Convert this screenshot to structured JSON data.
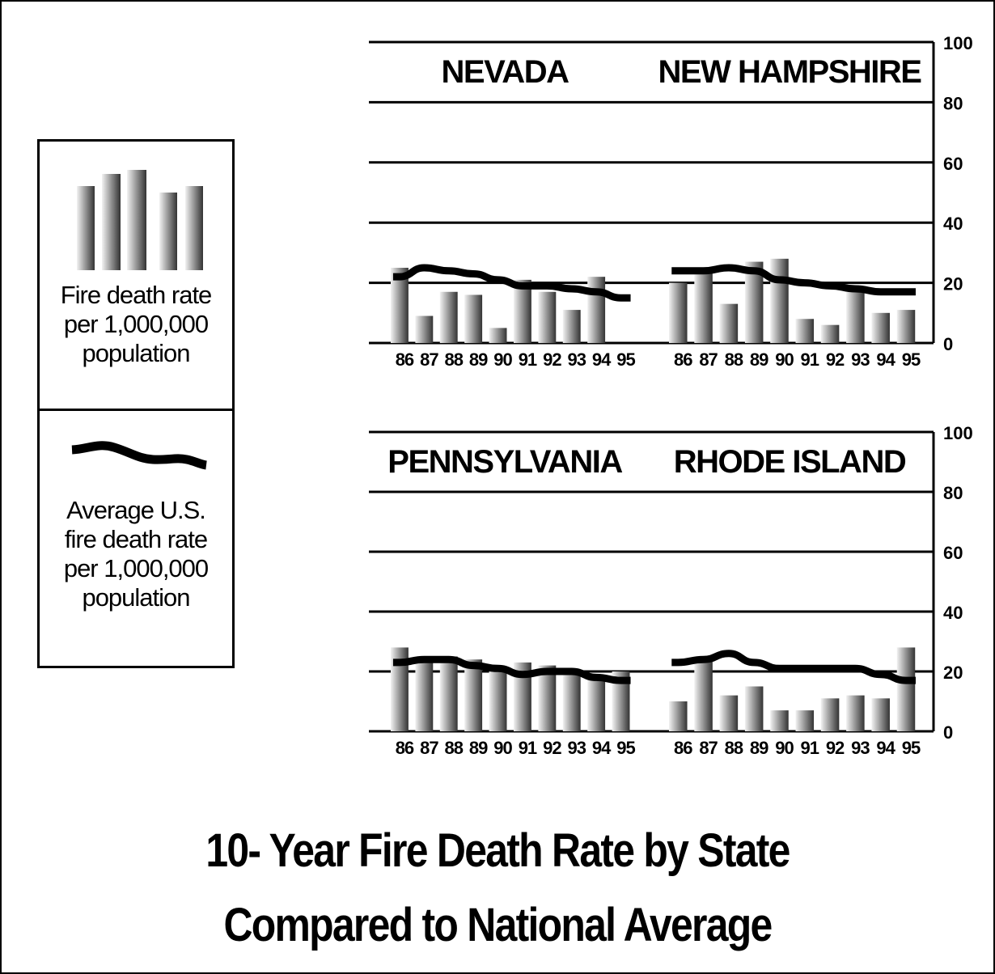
{
  "legend": {
    "bar_label": "Fire death rate\nper 1,000,000\npopulation",
    "line_label": "Average U.S.\nfire death rate\nper 1,000,000\npopulation"
  },
  "title": {
    "line1": "10- Year Fire Death Rate by State",
    "line2": "Compared to National Average"
  },
  "colors": {
    "bar_light": "#f2f2f2",
    "bar_dark": "#333333",
    "line": "#000000",
    "axis": "#000000"
  },
  "chart_data": [
    {
      "type": "bar",
      "title": "NEVADA",
      "categories": [
        "86",
        "87",
        "88",
        "89",
        "90",
        "91",
        "92",
        "93",
        "94",
        "95"
      ],
      "ylim": [
        0,
        100
      ],
      "yticks": [
        "0",
        "20",
        "40",
        "60",
        "80",
        "100"
      ],
      "series": [
        {
          "values": [
            25,
            9,
            17,
            16,
            5,
            21,
            17,
            11,
            22,
            null
          ]
        },
        {
          "values": [
            22,
            25,
            24,
            23,
            21,
            19,
            19,
            18,
            17,
            15
          ]
        }
      ]
    },
    {
      "type": "bar",
      "title": "NEW HAMPSHIRE",
      "categories": [
        "86",
        "87",
        "88",
        "89",
        "90",
        "91",
        "92",
        "93",
        "94",
        "95"
      ],
      "ylim": [
        0,
        100
      ],
      "yticks": [
        "0",
        "20",
        "40",
        "60",
        "80",
        "100"
      ],
      "series": [
        {
          "values": [
            20,
            25,
            13,
            27,
            28,
            8,
            6,
            17,
            10,
            11
          ]
        },
        {
          "values": [
            24,
            24,
            25,
            24,
            21,
            20,
            19,
            18,
            17,
            17
          ]
        }
      ]
    },
    {
      "type": "bar",
      "title": "PENNSYLVANIA",
      "categories": [
        "86",
        "87",
        "88",
        "89",
        "90",
        "91",
        "92",
        "93",
        "94",
        "95"
      ],
      "ylim": [
        0,
        100
      ],
      "yticks": [
        "0",
        "20",
        "40",
        "60",
        "80",
        "100"
      ],
      "series": [
        {
          "values": [
            28,
            24,
            25,
            24,
            20,
            23,
            22,
            19,
            18,
            20
          ]
        },
        {
          "values": [
            23,
            24,
            24,
            22,
            21,
            19,
            20,
            20,
            18,
            17
          ]
        }
      ]
    },
    {
      "type": "bar",
      "title": "RHODE ISLAND",
      "categories": [
        "86",
        "87",
        "88",
        "89",
        "90",
        "91",
        "92",
        "93",
        "94",
        "95"
      ],
      "ylim": [
        0,
        100
      ],
      "yticks": [
        "0",
        "20",
        "40",
        "60",
        "80",
        "100"
      ],
      "series": [
        {
          "values": [
            10,
            25,
            12,
            15,
            7,
            7,
            11,
            12,
            11,
            28
          ]
        },
        {
          "values": [
            23,
            24,
            26,
            23,
            21,
            21,
            21,
            21,
            19,
            17
          ]
        }
      ]
    }
  ]
}
